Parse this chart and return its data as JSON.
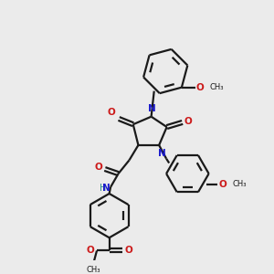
{
  "bg_color": "#ebebeb",
  "bond_color": "#1a1a1a",
  "N_color": "#1a1acc",
  "O_color": "#cc1a1a",
  "H_color": "#2a8a8a",
  "line_width": 1.6,
  "figsize": [
    3.0,
    3.0
  ],
  "dpi": 100,
  "xlim": [
    0,
    10
  ],
  "ylim": [
    0,
    10
  ]
}
